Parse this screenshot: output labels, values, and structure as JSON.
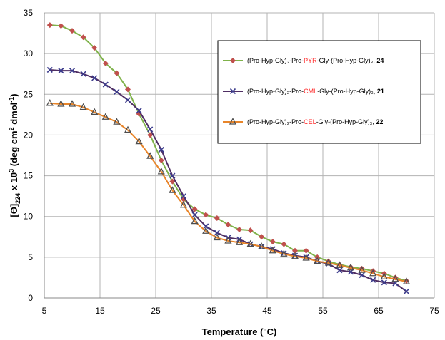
{
  "chart_data": {
    "type": "line",
    "xlabel": "Temperature (°C)",
    "ylabel_parts": {
      "a": "[Θ]",
      "b": "224",
      "c": " x 10",
      "d": "3",
      "e": " (deg cm",
      "f": "2",
      "g": " dmol",
      "h": "-1",
      "i": ")"
    },
    "xlim": [
      5,
      75
    ],
    "ylim": [
      0,
      35
    ],
    "x_ticks": [
      "5",
      "15",
      "25",
      "35",
      "45",
      "55",
      "65",
      "75"
    ],
    "y_ticks": [
      "0",
      "5",
      "10",
      "15",
      "20",
      "25",
      "30",
      "35"
    ],
    "grid": true,
    "legend_position": "upper-right",
    "legend_labels": [
      {
        "pre": "(Pro-Hyp-Gly)₃-Pro-",
        "mid": "PYR",
        "post": "-Gly-(Pro-Hyp-Gly)₃, ",
        "num": "24"
      },
      {
        "pre": "(Pro-Hyp-Gly)₃-Pro-",
        "mid": "CML",
        "post": "-Gly-(Pro-Hyp-Gly)₃, ",
        "num": "21"
      },
      {
        "pre": "(Pro-Hyp-Gly)₃-Pro-",
        "mid": "CEL",
        "post": "-Gly-(Pro-Hyp-Gly)₃, ",
        "num": "22"
      }
    ],
    "series": [
      {
        "color": "#7fb24a",
        "marker": "diamond",
        "marker_color": "#c0504d",
        "x": [
          6,
          8,
          10,
          12,
          14,
          16,
          18,
          20,
          22,
          24,
          26,
          28,
          30,
          32,
          34,
          36,
          38,
          40,
          42,
          44,
          46,
          48,
          50,
          52,
          54,
          56,
          58,
          60,
          62,
          64,
          66,
          68,
          70
        ],
        "y": [
          33.5,
          33.4,
          32.8,
          32.0,
          30.7,
          28.8,
          27.6,
          25.6,
          22.6,
          20.0,
          16.9,
          14.3,
          12.1,
          10.9,
          10.2,
          9.8,
          9.0,
          8.4,
          8.3,
          7.5,
          6.9,
          6.6,
          5.8,
          5.8,
          5.0,
          4.5,
          4.1,
          3.8,
          3.6,
          3.3,
          3.0,
          2.5,
          2.1
        ]
      },
      {
        "color": "#4f2e63",
        "marker": "x",
        "marker_color": "#3b3b8c",
        "x": [
          6,
          8,
          10,
          12,
          14,
          16,
          18,
          20,
          22,
          24,
          26,
          28,
          30,
          32,
          34,
          36,
          38,
          40,
          42,
          44,
          46,
          48,
          50,
          52,
          54,
          56,
          58,
          60,
          62,
          64,
          66,
          68,
          70
        ],
        "y": [
          28.0,
          27.9,
          27.9,
          27.5,
          27.0,
          26.2,
          25.3,
          24.3,
          23.0,
          20.7,
          18.2,
          15.0,
          12.5,
          10.2,
          8.8,
          8.0,
          7.4,
          7.2,
          6.6,
          6.3,
          6.0,
          5.5,
          5.2,
          5.0,
          4.5,
          4.2,
          3.4,
          3.2,
          2.8,
          2.2,
          1.9,
          1.8,
          0.8
        ]
      },
      {
        "color": "#e8852a",
        "marker": "triangle",
        "marker_color": "#4d4d4d",
        "x": [
          6,
          8,
          10,
          12,
          14,
          16,
          18,
          20,
          22,
          24,
          26,
          28,
          30,
          32,
          34,
          36,
          38,
          40,
          42,
          44,
          46,
          48,
          50,
          52,
          54,
          56,
          58,
          60,
          62,
          64,
          66,
          68,
          70
        ],
        "y": [
          23.9,
          23.8,
          23.8,
          23.4,
          22.8,
          22.2,
          21.6,
          20.6,
          19.2,
          17.4,
          15.5,
          13.2,
          11.4,
          9.4,
          8.2,
          7.4,
          7.0,
          6.8,
          6.6,
          6.3,
          5.8,
          5.4,
          5.1,
          4.9,
          4.5,
          4.3,
          4.0,
          3.7,
          3.4,
          3.0,
          2.6,
          2.3,
          2.0
        ]
      }
    ]
  }
}
